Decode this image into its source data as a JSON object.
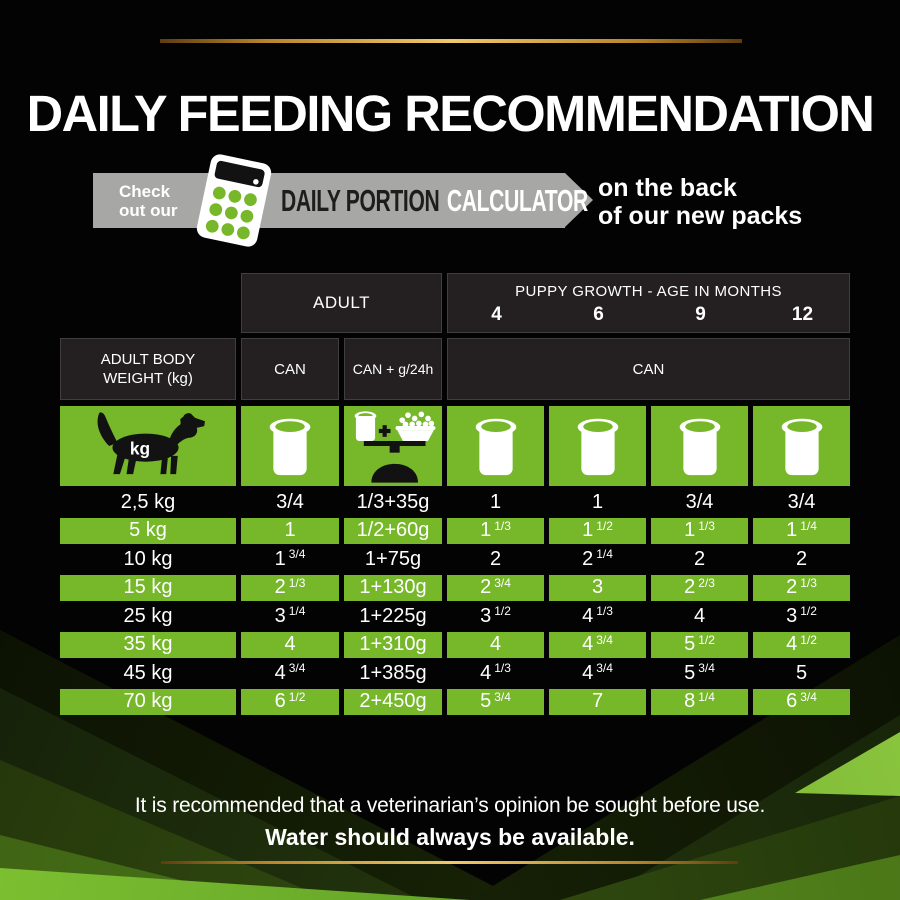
{
  "title": "DAILY FEEDING RECOMMENDATION",
  "promo": {
    "check_line1": "Check",
    "check_line2": "out our",
    "banner_dark_text": "DAILY PORTION",
    "banner_light_text": "CALCULATOR",
    "right_line1": "on the back",
    "right_line2": "of our new packs"
  },
  "icons": {
    "dog_label": "kg",
    "dog": "dog-kg-icon",
    "can": "wet-food-can-icon",
    "can_plus_kibble_scale": "can-plus-kibble-scale-icon",
    "calculator": "calculator-icon"
  },
  "chart_data": {
    "type": "table",
    "title": "DAILY FEEDING RECOMMENDATION",
    "groups": {
      "adult_label": "ADULT",
      "puppy_label": "PUPPY GROWTH - AGE IN MONTHS"
    },
    "months": [
      "4",
      "6",
      "9",
      "12"
    ],
    "row_header": "ADULT BODY WEIGHT (kg)",
    "adult_columns": [
      "CAN",
      "CAN + g/24h"
    ],
    "puppy_column_header": "CAN",
    "rows": [
      {
        "weight": "2,5 kg",
        "highlight": false,
        "values": [
          "3/4",
          "1/3+35g",
          "1",
          "1",
          "3/4",
          "3/4"
        ]
      },
      {
        "weight": "5 kg",
        "highlight": true,
        "values": [
          "1",
          "1/2+60g",
          "1 1/3",
          "1 1/2",
          "1 1/3",
          "1 1/4"
        ]
      },
      {
        "weight": "10 kg",
        "highlight": false,
        "values": [
          "1 3/4",
          "1+75g",
          "2",
          "2 1/4",
          "2",
          "2"
        ]
      },
      {
        "weight": "15 kg",
        "highlight": true,
        "values": [
          "2 1/3",
          "1+130g",
          "2 3/4",
          "3",
          "2 2/3",
          "2 1/3"
        ]
      },
      {
        "weight": "25 kg",
        "highlight": false,
        "values": [
          "3 1/4",
          "1+225g",
          "3 1/2",
          "4 1/3",
          "4",
          "3 1/2"
        ]
      },
      {
        "weight": "35 kg",
        "highlight": true,
        "values": [
          "4",
          "1+310g",
          "4",
          "4 3/4",
          "5 1/2",
          "4 1/2"
        ]
      },
      {
        "weight": "45 kg",
        "highlight": false,
        "values": [
          "4 3/4",
          "1+385g",
          "4 1/3",
          "4 3/4",
          "5 3/4",
          "5"
        ]
      },
      {
        "weight": "70 kg",
        "highlight": true,
        "values": [
          "6 1/2",
          "2+450g",
          "5 3/4",
          "7",
          "8 1/4",
          "6 3/4"
        ]
      }
    ]
  },
  "footer": {
    "line1": "It is recommended that a veterinarian’s opinion be sought before use.",
    "line2": "Water should always be available."
  },
  "colors": {
    "green": "#76b82a",
    "dark_cell": "#242021",
    "banner_gray": "#a7a7a6",
    "gold": "#d9a441",
    "background": "#030303"
  }
}
